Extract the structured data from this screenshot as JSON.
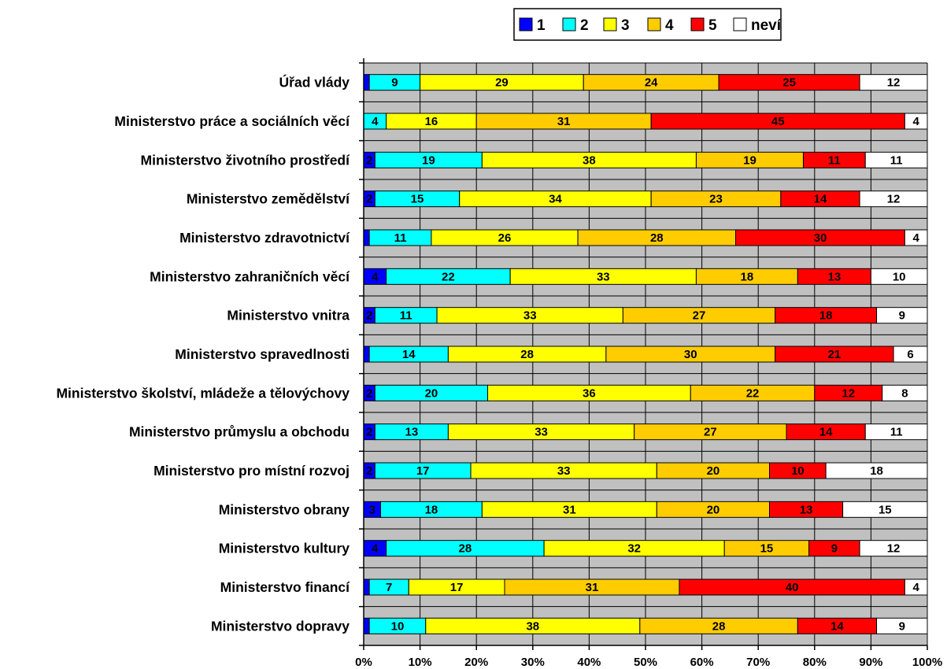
{
  "chart_data": {
    "type": "bar",
    "orientation": "horizontal",
    "stacked": true,
    "percent_stacked": true,
    "title": "",
    "xlabel": "",
    "ylabel": "",
    "xlim": [
      0,
      100
    ],
    "x_ticks": [
      "0%",
      "10%",
      "20%",
      "30%",
      "40%",
      "50%",
      "60%",
      "70%",
      "80%",
      "90%",
      "100%"
    ],
    "grid": true,
    "plot_background": "#c0c0c0",
    "legend": {
      "position": "top",
      "entries": [
        "1",
        "2",
        "3",
        "4",
        "5",
        "neví"
      ]
    },
    "categories": [
      "Úřad vlády",
      "Ministerstvo práce a sociálních věcí",
      "Ministerstvo životního prostředí",
      "Ministerstvo zemědělství",
      "Ministerstvo zdravotnictví",
      "Ministerstvo zahraničních věcí",
      "Ministerstvo vnitra",
      "Ministerstvo spravedlnosti",
      "Ministerstvo školství, mládeže a tělovýchovy",
      "Ministerstvo průmyslu a obchodu",
      "Ministerstvo pro místní rozvoj",
      "Ministerstvo obrany",
      "Ministerstvo kultury",
      "Ministerstvo financí",
      "Ministerstvo dopravy"
    ],
    "series": [
      {
        "name": "1",
        "color": "#0000ff",
        "values": [
          1,
          0,
          2,
          2,
          1,
          4,
          2,
          1,
          2,
          2,
          2,
          3,
          4,
          1,
          1
        ],
        "labels": [
          "",
          "",
          "2",
          "2",
          "",
          "4",
          "2",
          "",
          "2",
          "2",
          "2",
          "3",
          "4",
          "",
          ""
        ]
      },
      {
        "name": "2",
        "color": "#00ffff",
        "values": [
          9,
          4,
          19,
          15,
          11,
          22,
          11,
          14,
          20,
          13,
          17,
          18,
          28,
          7,
          10
        ],
        "labels": [
          "9",
          "4",
          "19",
          "15",
          "11",
          "22",
          "11",
          "14",
          "20",
          "13",
          "17",
          "18",
          "28",
          "7",
          "10"
        ]
      },
      {
        "name": "3",
        "color": "#ffff00",
        "values": [
          29,
          16,
          38,
          34,
          26,
          33,
          33,
          28,
          36,
          33,
          33,
          31,
          32,
          17,
          38
        ],
        "labels": [
          "29",
          "16",
          "38",
          "34",
          "26",
          "33",
          "33",
          "28",
          "36",
          "33",
          "33",
          "31",
          "32",
          "17",
          "38"
        ]
      },
      {
        "name": "4",
        "color": "#ffcc00",
        "values": [
          24,
          31,
          19,
          23,
          28,
          18,
          27,
          30,
          22,
          27,
          20,
          20,
          15,
          31,
          28
        ],
        "labels": [
          "24",
          "31",
          "19",
          "23",
          "28",
          "18",
          "27",
          "30",
          "22",
          "27",
          "20",
          "20",
          "15",
          "31",
          "28"
        ]
      },
      {
        "name": "5",
        "color": "#ff0000",
        "values": [
          25,
          45,
          11,
          14,
          30,
          13,
          18,
          21,
          12,
          14,
          10,
          13,
          9,
          40,
          14
        ],
        "labels": [
          "25",
          "45",
          "11",
          "14",
          "30",
          "13",
          "18",
          "21",
          "12",
          "14",
          "10",
          "13",
          "9",
          "40",
          "14"
        ]
      },
      {
        "name": "neví",
        "color": "#ffffff",
        "values": [
          12,
          4,
          11,
          12,
          4,
          10,
          9,
          6,
          8,
          11,
          18,
          15,
          12,
          4,
          9
        ],
        "labels": [
          "12",
          "4",
          "11",
          "12",
          "4",
          "10",
          "9",
          "6",
          "8",
          "11",
          "18",
          "15",
          "12",
          "4",
          "9"
        ]
      }
    ]
  }
}
